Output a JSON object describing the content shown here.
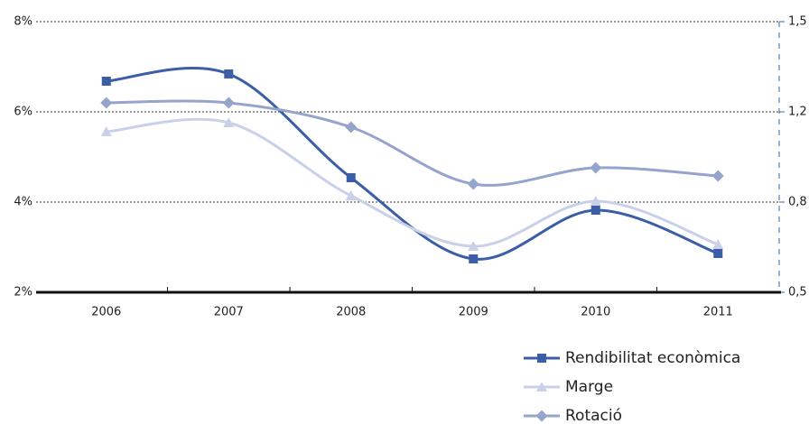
{
  "chart_data": {
    "type": "line",
    "categories": [
      "2006",
      "2007",
      "2008",
      "2009",
      "2010",
      "2011"
    ],
    "series": [
      {
        "name": "Rendibilitat econòmica",
        "color": "#3b5ea6",
        "marker": "square",
        "values": [
          6.68,
          6.84,
          4.54,
          2.74,
          3.82,
          2.86
        ]
      },
      {
        "name": "Marge",
        "color": "#c9d1e8",
        "marker": "triangle",
        "values": [
          5.56,
          5.76,
          4.14,
          3.02,
          4.02,
          3.06
        ]
      },
      {
        "name": "Rotació",
        "color": "#95a4cc",
        "marker": "diamond",
        "axis": "y2",
        "values": [
          1.2,
          1.2,
          1.11,
          0.9,
          0.96,
          0.93
        ]
      }
    ],
    "ylim": [
      2,
      8
    ],
    "yticks": [
      {
        "value": 2,
        "label": "2%"
      },
      {
        "value": 4,
        "label": "4%"
      },
      {
        "value": 6,
        "label": "6%"
      },
      {
        "value": 8,
        "label": "8%"
      }
    ],
    "y2lim": [
      0.5,
      1.5
    ],
    "y2ticks": [
      {
        "value": 0.5,
        "label": "0,5"
      },
      {
        "value": 0.8333,
        "label": "0,8"
      },
      {
        "value": 1.1667,
        "label": "1,2"
      },
      {
        "value": 1.5,
        "label": "1,5"
      }
    ],
    "grid": true,
    "legend": "bottom-right"
  }
}
